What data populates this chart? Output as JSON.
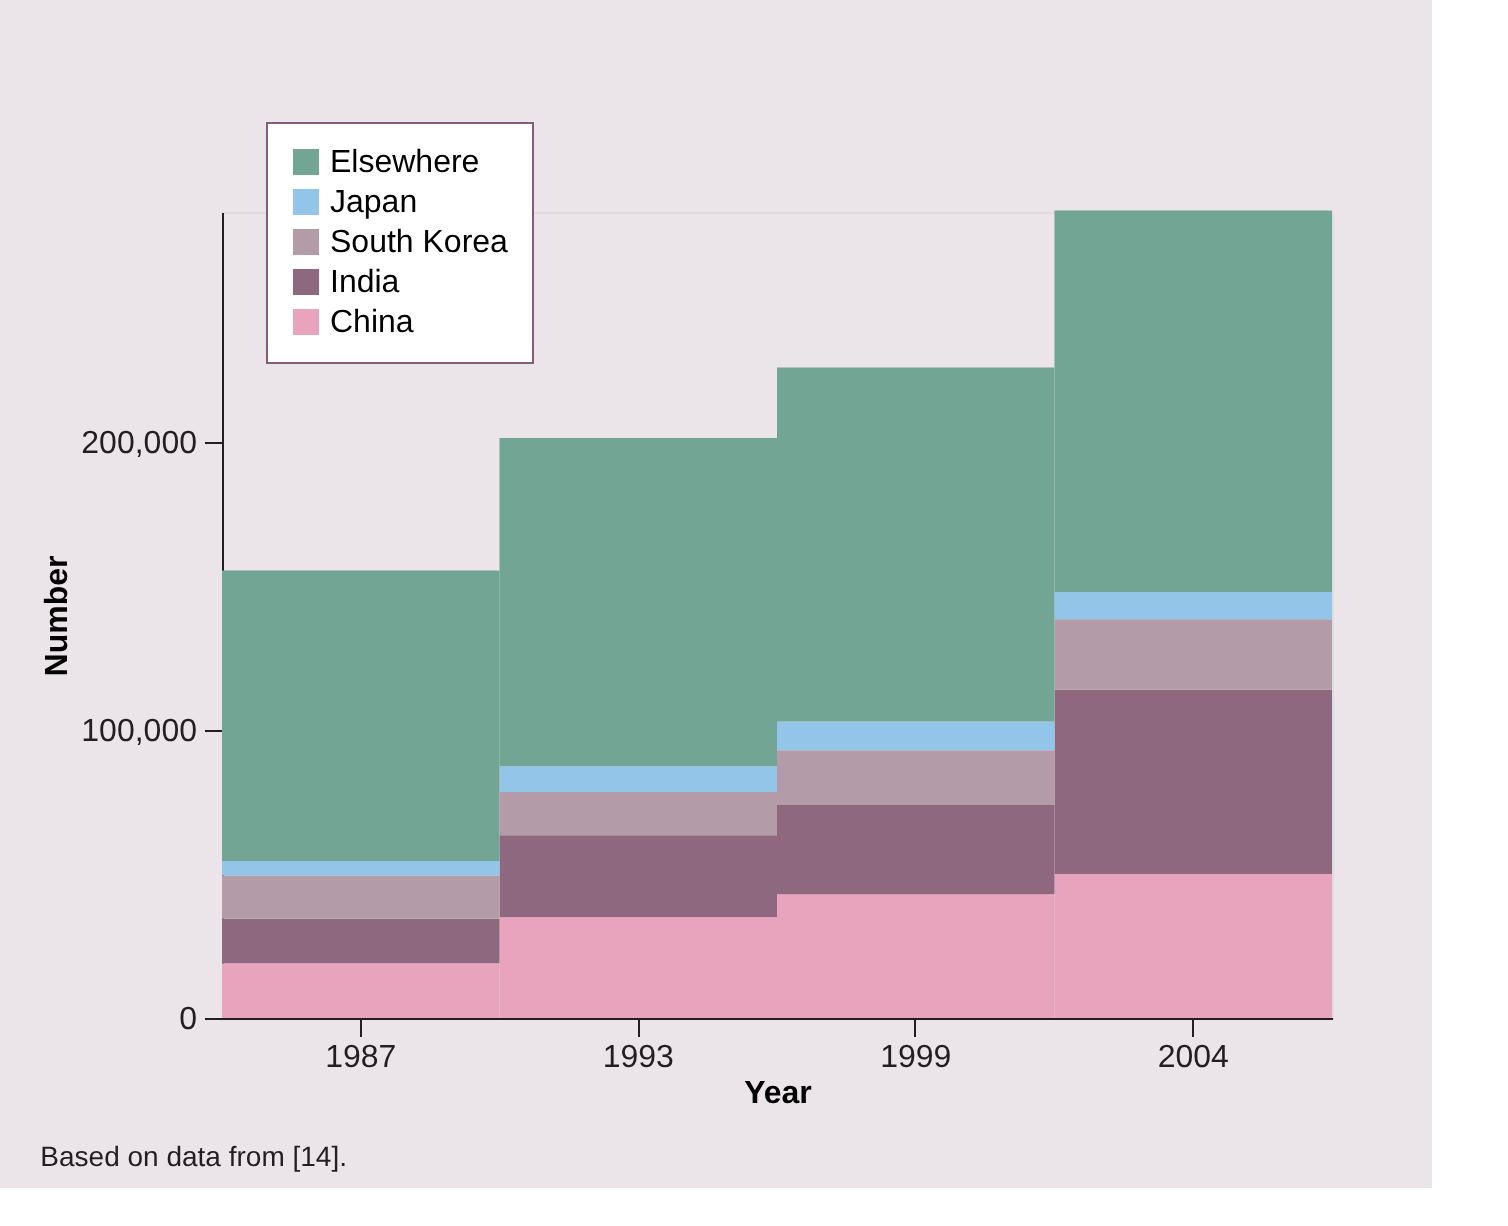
{
  "chart_data": {
    "type": "bar",
    "stacked": true,
    "xlabel": "Year",
    "ylabel": "Number",
    "categories": [
      "1987",
      "1993",
      "1999",
      "2004"
    ],
    "series": [
      {
        "name": "China",
        "color": "#e8a4bd",
        "values": [
          19000,
          35000,
          43000,
          50000
        ]
      },
      {
        "name": "India",
        "color": "#8e687e",
        "values": [
          15500,
          28500,
          31000,
          64000
        ]
      },
      {
        "name": "South Korea",
        "color": "#b39ba8",
        "values": [
          15000,
          15000,
          19000,
          24500
        ]
      },
      {
        "name": "Japan",
        "color": "#93c5e9",
        "values": [
          5000,
          9000,
          10000,
          9500
        ]
      },
      {
        "name": "Elsewhere",
        "color": "#72a593",
        "values": [
          101000,
          114000,
          123000,
          132500
        ]
      }
    ],
    "ylim": [
      0,
      280000
    ],
    "yticks": [
      0,
      {
        "value": 100000,
        "label": "100,000"
      },
      {
        "value": 200000,
        "label": "200,000"
      }
    ],
    "grid": false,
    "legend": "top left",
    "annotations": [
      "Based on data from [14]."
    ]
  }
}
